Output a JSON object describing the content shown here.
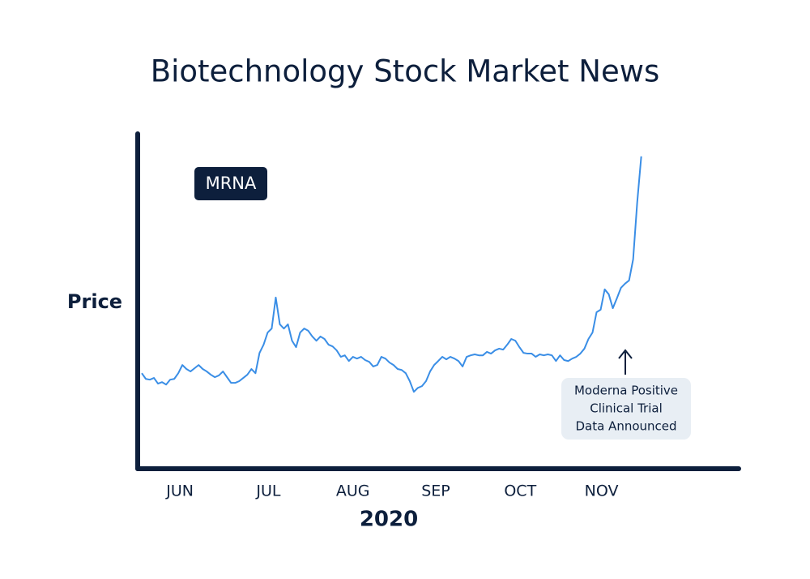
{
  "chart_data": {
    "type": "line",
    "title": "Biotechnology Stock Market News",
    "y_label": "Price",
    "x_label": "2020",
    "xlim": [
      -1,
      147
    ],
    "xticks": [
      {
        "value": 9.4,
        "label": "JUN"
      },
      {
        "value": 31.2,
        "label": "JUL"
      },
      {
        "value": 52,
        "label": "AUG"
      },
      {
        "value": 72.4,
        "label": "SEP"
      },
      {
        "value": 93.2,
        "label": "OCT"
      },
      {
        "value": 113.2,
        "label": "NOV"
      }
    ],
    "ylim": [
      26,
      161
    ],
    "series": [
      {
        "name": "MRNA",
        "color": "#3a8ee6",
        "values": [
          64.5,
          62.2,
          61.9,
          62.6,
          60.3,
          60.9,
          59.9,
          61.9,
          62.2,
          64.5,
          67.8,
          66.2,
          65.2,
          66.5,
          67.8,
          66.2,
          65.2,
          63.9,
          62.9,
          63.6,
          65.2,
          62.9,
          60.6,
          60.6,
          61.3,
          62.6,
          63.9,
          66.2,
          64.5,
          72.7,
          76.0,
          80.9,
          82.5,
          95.0,
          84.2,
          82.5,
          84.2,
          77.6,
          75.0,
          80.9,
          82.5,
          81.6,
          79.3,
          77.6,
          79.3,
          78.3,
          76.0,
          75.3,
          73.7,
          71.1,
          71.7,
          69.4,
          71.1,
          70.4,
          71.1,
          69.8,
          69.1,
          67.2,
          67.8,
          71.1,
          70.4,
          68.8,
          67.8,
          66.2,
          65.8,
          64.5,
          61.3,
          57.0,
          58.6,
          59.3,
          61.3,
          65.2,
          67.8,
          69.4,
          71.1,
          70.1,
          71.1,
          70.4,
          69.4,
          67.2,
          71.1,
          71.7,
          72.1,
          71.7,
          71.7,
          73.1,
          72.4,
          73.7,
          74.4,
          74.0,
          76.0,
          78.3,
          77.6,
          75.0,
          72.7,
          72.4,
          72.4,
          71.1,
          72.1,
          71.7,
          72.1,
          71.7,
          69.4,
          71.7,
          69.8,
          69.4,
          70.4,
          71.1,
          72.4,
          74.4,
          78.3,
          80.9,
          89.1,
          90.1,
          98.3,
          96.3,
          90.7,
          94.7,
          98.9,
          100.6,
          101.9,
          110.4,
          133.3,
          151.9
        ]
      }
    ],
    "annotation": {
      "lines": [
        "Moderna Positive",
        "Clinical Trial",
        "Data Announced"
      ]
    }
  }
}
